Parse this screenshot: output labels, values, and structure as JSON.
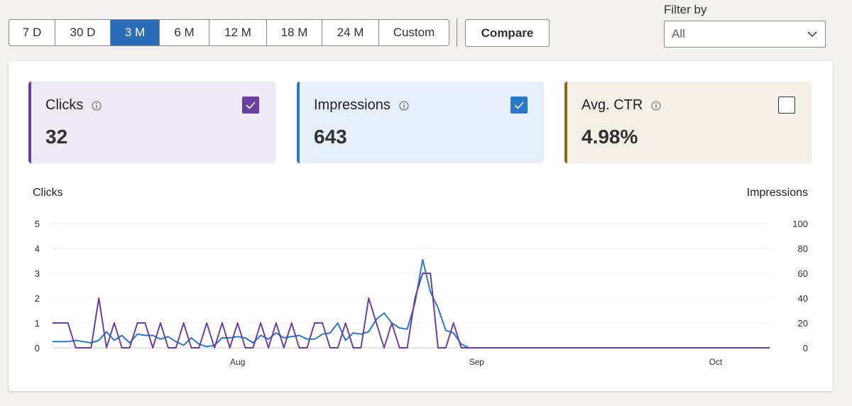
{
  "time_range": {
    "options": [
      "7 D",
      "30 D",
      "3 M",
      "6 M",
      "12 M",
      "18 M",
      "24 M",
      "Custom"
    ],
    "selected": "3 M"
  },
  "compare_label": "Compare",
  "filter": {
    "label": "Filter by",
    "value": "All"
  },
  "metrics": {
    "clicks": {
      "title": "Clicks",
      "value": "32",
      "checked": true,
      "color": "#6b3fa0",
      "bg": "#efebf6"
    },
    "impressions": {
      "title": "Impressions",
      "value": "643",
      "checked": true,
      "color": "#2b78c9",
      "bg": "#e7f0fa"
    },
    "ctr": {
      "title": "Avg. CTR",
      "value": "4.98%",
      "checked": false,
      "color": "#8a6a1c",
      "bg": "#f3f0e8"
    }
  },
  "chart_data": {
    "type": "line",
    "x_tick_labels": [
      "Aug",
      "Sep",
      "Oct"
    ],
    "left_axis": {
      "title": "Clicks",
      "ticks": [
        0,
        1,
        2,
        3,
        4,
        5
      ],
      "ylim": [
        0,
        5
      ]
    },
    "right_axis": {
      "title": "Impressions",
      "ticks": [
        0,
        20,
        40,
        60,
        80,
        100
      ],
      "ylim": [
        0,
        100
      ]
    },
    "series": [
      {
        "name": "Clicks",
        "axis": "left",
        "color": "#6b3fa0",
        "values": [
          1,
          1,
          1,
          0,
          0,
          0,
          2,
          0,
          1,
          0,
          0,
          1,
          1,
          0,
          1,
          0,
          0,
          1,
          0,
          0,
          1,
          0,
          1,
          0,
          1,
          0,
          0,
          1,
          0,
          1,
          0,
          1,
          0,
          0,
          1,
          1,
          0,
          0,
          1,
          0,
          0,
          2,
          1,
          0,
          1,
          0,
          0,
          2,
          3,
          3,
          0,
          0,
          1,
          0,
          0,
          0,
          0,
          0,
          0,
          0,
          0,
          0,
          0,
          0,
          0,
          0,
          0,
          0,
          0,
          0,
          0,
          0,
          0,
          0,
          0,
          0,
          0,
          0,
          0,
          0,
          0,
          0,
          0,
          0,
          0,
          0,
          0,
          0,
          0,
          0,
          0,
          0,
          0,
          0
        ]
      },
      {
        "name": "Impressions",
        "axis": "right",
        "color": "#2b78c9",
        "values": [
          5,
          5,
          5,
          6,
          5,
          4,
          6,
          13,
          6,
          10,
          4,
          11,
          10,
          10,
          7,
          9,
          5,
          2,
          8,
          3,
          1,
          2,
          8,
          8,
          9,
          8,
          4,
          10,
          7,
          12,
          8,
          9,
          10,
          7,
          7,
          11,
          12,
          20,
          6,
          12,
          11,
          13,
          23,
          28,
          20,
          16,
          15,
          36,
          71,
          45,
          32,
          14,
          12,
          3,
          0,
          0,
          0,
          0,
          0,
          0,
          0,
          0,
          0,
          0,
          0,
          0,
          0,
          0,
          0,
          0,
          0,
          0,
          0,
          0,
          0,
          0,
          0,
          0,
          0,
          0,
          0,
          0,
          0,
          0,
          0,
          0,
          0,
          0,
          0,
          0,
          0,
          0,
          0,
          0
        ]
      }
    ]
  }
}
